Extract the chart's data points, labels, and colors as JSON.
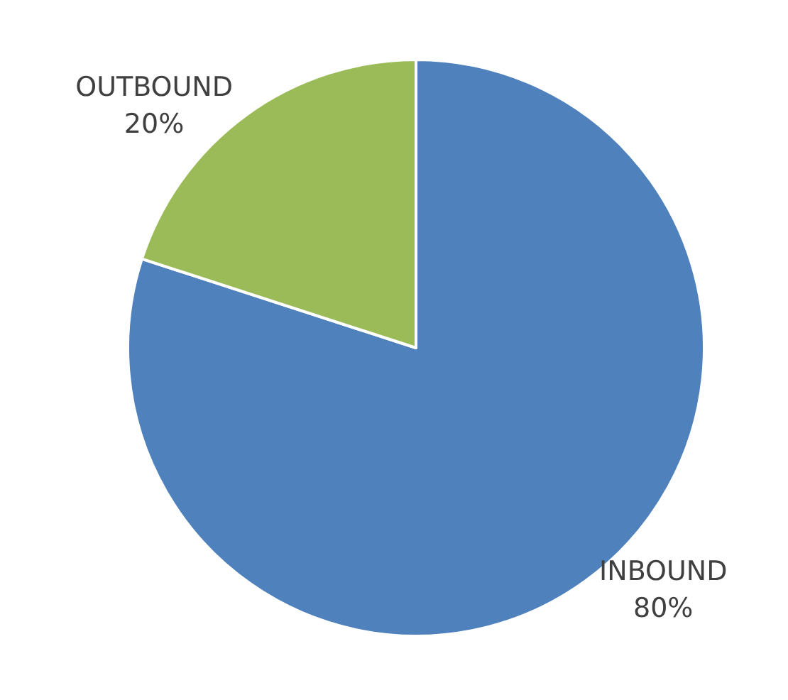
{
  "chart_data": {
    "type": "pie",
    "categories": [
      "INBOUND",
      "OUTBOUND"
    ],
    "values": [
      80,
      20
    ],
    "value_labels": [
      "80%",
      "20%"
    ],
    "colors": [
      "#4f81bd",
      "#9bbb59"
    ],
    "legend": false
  }
}
